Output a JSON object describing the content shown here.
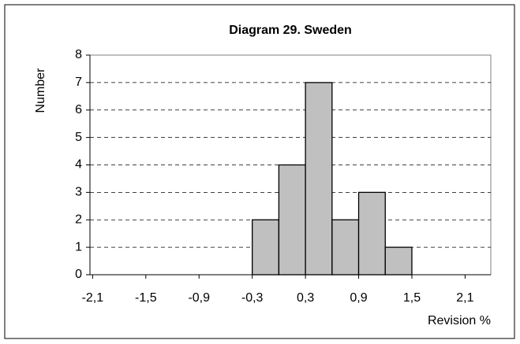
{
  "chart_data": {
    "type": "histogram",
    "title": "Diagram 29.  Sweden",
    "x_label": "Revision %",
    "y_label": "Number",
    "bins": [
      -0.3,
      0,
      0.3,
      0.6,
      0.9,
      1.2,
      1.5
    ],
    "values": [
      2,
      4,
      7,
      2,
      3,
      1
    ],
    "color": "#c0c0c0",
    "xlim": [
      -2.13,
      2.39
    ],
    "xticks": [
      {
        "value": -2.1,
        "label": "-2,1"
      },
      {
        "value": -1.5,
        "label": "-1,5"
      },
      {
        "value": -0.9,
        "label": "-0,9"
      },
      {
        "value": -0.3,
        "label": "-0,3"
      },
      {
        "value": 0.3,
        "label": "0,3"
      },
      {
        "value": 0.9,
        "label": "0,9"
      },
      {
        "value": 1.5,
        "label": "1,5"
      },
      {
        "value": 2.1,
        "label": "2,1"
      }
    ],
    "ylim": [
      0,
      8
    ],
    "yticks": [
      0,
      1,
      2,
      3,
      4,
      5,
      6,
      7,
      8
    ],
    "grid": true
  }
}
